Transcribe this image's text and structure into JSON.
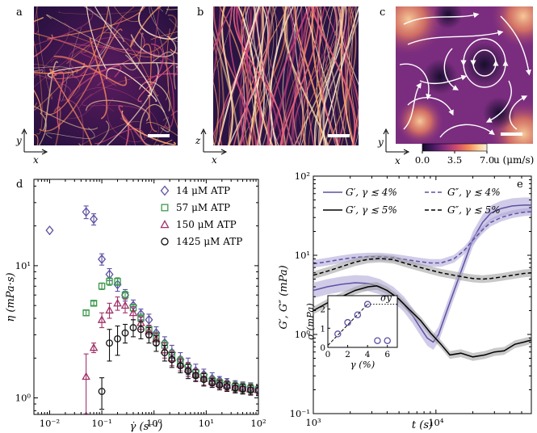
{
  "panel_labels": {
    "a": "a",
    "b": "b",
    "c": "c",
    "d": "d",
    "e": "e"
  },
  "micro": {
    "a_axes": {
      "vertical": "y",
      "horizontal": "x"
    },
    "b_axes": {
      "vertical": "z",
      "horizontal": "x"
    },
    "c_axes": {
      "vertical": "y",
      "horizontal": "x"
    },
    "colorbar": {
      "ticks": [
        "0.0",
        "3.5",
        "7.0"
      ],
      "label": "u (μm/s)",
      "colors": [
        "#120c2b",
        "#4b1a67",
        "#8f2f7e",
        "#d6506c",
        "#f58a5a",
        "#fcd29b",
        "#fcefd9"
      ]
    }
  },
  "chart_data": [
    {
      "type": "scatter",
      "panel": "d",
      "xlabel": "γ̇ (s⁻¹)",
      "ylabel": "η (mPa·s)",
      "xscale": "log",
      "yscale": "log",
      "xlim": [
        0.005,
        100
      ],
      "ylim": [
        0.75,
        45
      ],
      "xticks": [
        {
          "v": 0.01,
          "label": "10⁻²"
        },
        {
          "v": 0.1,
          "label": "10⁻¹"
        },
        {
          "v": 1,
          "label": "10⁰"
        },
        {
          "v": 10,
          "label": "10¹"
        },
        {
          "v": 100,
          "label": "10²"
        }
      ],
      "yticks": [
        {
          "v": 1,
          "label": "10⁰"
        },
        {
          "v": 10,
          "label": "10¹"
        }
      ],
      "legend_position": "top-right",
      "series": [
        {
          "name": "14 μM ATP",
          "marker": "diamond",
          "color": "#5c51a3",
          "points": [
            [
              0.01,
              18.5
            ],
            [
              0.05,
              25.5
            ],
            [
              0.07,
              22.5
            ],
            [
              0.1,
              11.2
            ],
            [
              0.14,
              8.6
            ],
            [
              0.2,
              7.2
            ],
            [
              0.28,
              6.0
            ],
            [
              0.4,
              5.0
            ],
            [
              0.56,
              4.3
            ],
            [
              0.8,
              3.9
            ],
            [
              1.1,
              3.1
            ],
            [
              1.6,
              2.6
            ],
            [
              2.2,
              2.2
            ],
            [
              3.2,
              1.95
            ],
            [
              4.5,
              1.75
            ],
            [
              6.3,
              1.6
            ],
            [
              9,
              1.5
            ],
            [
              13,
              1.4
            ],
            [
              18,
              1.35
            ],
            [
              25,
              1.3
            ],
            [
              36,
              1.25
            ],
            [
              50,
              1.22
            ],
            [
              71,
              1.2
            ],
            [
              100,
              1.17
            ]
          ],
          "err": [
            0.0,
            2.8,
            2.2,
            1.1,
            0.9,
            0.8,
            0.6,
            0.5,
            0.4,
            0.4,
            0.35,
            0.3,
            0.3,
            0.25,
            0.25,
            0.2,
            0.15,
            0.15,
            0.1,
            0.1,
            0.1,
            0.1,
            0.1,
            0.1
          ]
        },
        {
          "name": "57 μM ATP",
          "marker": "square",
          "color": "#3b9a4a",
          "points": [
            [
              0.05,
              4.4
            ],
            [
              0.07,
              5.2
            ],
            [
              0.1,
              7.0
            ],
            [
              0.14,
              7.6
            ],
            [
              0.2,
              7.6
            ],
            [
              0.28,
              6.0
            ],
            [
              0.4,
              4.8
            ],
            [
              0.56,
              4.0
            ],
            [
              0.8,
              3.3
            ],
            [
              1.1,
              2.9
            ],
            [
              1.6,
              2.5
            ],
            [
              2.2,
              2.1
            ],
            [
              3.2,
              1.9
            ],
            [
              4.5,
              1.7
            ],
            [
              6.3,
              1.55
            ],
            [
              9,
              1.45
            ],
            [
              13,
              1.35
            ],
            [
              18,
              1.3
            ],
            [
              25,
              1.25
            ],
            [
              36,
              1.22
            ],
            [
              50,
              1.2
            ],
            [
              71,
              1.18
            ],
            [
              100,
              1.16
            ]
          ],
          "err": [
            0.2,
            0.2,
            0.4,
            0.5,
            0.5,
            0.4,
            0.3,
            0.3,
            0.25,
            0.25,
            0.2,
            0.2,
            0.15,
            0.15,
            0.1,
            0.1,
            0.1,
            0.1,
            0.1,
            0.1,
            0.1,
            0.1,
            0.1
          ]
        },
        {
          "name": "150 μM ATP",
          "marker": "triangle",
          "color": "#a0326a",
          "points": [
            [
              0.05,
              1.45
            ],
            [
              0.07,
              2.4
            ],
            [
              0.1,
              3.9
            ],
            [
              0.14,
              4.6
            ],
            [
              0.2,
              5.2
            ],
            [
              0.28,
              5.0
            ],
            [
              0.4,
              4.4
            ],
            [
              0.56,
              3.7
            ],
            [
              0.8,
              3.2
            ],
            [
              1.1,
              2.8
            ],
            [
              1.6,
              2.3
            ],
            [
              2.2,
              2.0
            ],
            [
              3.2,
              1.8
            ],
            [
              4.5,
              1.65
            ],
            [
              6.3,
              1.5
            ],
            [
              9,
              1.4
            ],
            [
              13,
              1.33
            ],
            [
              18,
              1.28
            ],
            [
              25,
              1.24
            ],
            [
              36,
              1.2
            ],
            [
              50,
              1.18
            ],
            [
              71,
              1.16
            ],
            [
              100,
              1.15
            ]
          ],
          "err": [
            0.7,
            0.2,
            0.5,
            0.6,
            0.6,
            0.6,
            0.5,
            0.4,
            0.35,
            0.3,
            0.3,
            0.25,
            0.2,
            0.2,
            0.15,
            0.15,
            0.1,
            0.1,
            0.1,
            0.1,
            0.1,
            0.1,
            0.1
          ]
        },
        {
          "name": "1425 μM ATP",
          "marker": "circle",
          "color": "#111111",
          "points": [
            [
              0.1,
              1.12
            ],
            [
              0.14,
              2.6
            ],
            [
              0.2,
              2.8
            ],
            [
              0.28,
              3.1
            ],
            [
              0.4,
              3.4
            ],
            [
              0.56,
              3.3
            ],
            [
              0.8,
              3.0
            ],
            [
              1.1,
              2.6
            ],
            [
              1.6,
              2.2
            ],
            [
              2.2,
              1.95
            ],
            [
              3.2,
              1.75
            ],
            [
              4.5,
              1.6
            ],
            [
              6.3,
              1.48
            ],
            [
              9,
              1.38
            ],
            [
              13,
              1.3
            ],
            [
              18,
              1.25
            ],
            [
              25,
              1.22
            ],
            [
              36,
              1.19
            ],
            [
              50,
              1.17
            ],
            [
              71,
              1.15
            ],
            [
              100,
              1.14
            ]
          ],
          "err": [
            0.3,
            0.7,
            0.7,
            0.5,
            0.5,
            0.5,
            0.4,
            0.35,
            0.3,
            0.25,
            0.2,
            0.2,
            0.15,
            0.15,
            0.1,
            0.1,
            0.1,
            0.1,
            0.1,
            0.1,
            0.1
          ]
        }
      ]
    },
    {
      "type": "line",
      "panel": "e",
      "xlabel": "t (s)",
      "ylabel": "G′, G″ (mPa)",
      "xscale": "log",
      "yscale": "log",
      "xlim": [
        1000,
        60000
      ],
      "ylim": [
        0.1,
        100
      ],
      "xticks": [
        {
          "v": 1000,
          "label": "10³"
        },
        {
          "v": 10000,
          "label": "10⁴"
        }
      ],
      "yticks": [
        {
          "v": 0.1,
          "label": "10⁻¹"
        },
        {
          "v": 1,
          "label": "10⁰"
        },
        {
          "v": 10,
          "label": "10¹"
        },
        {
          "v": 100,
          "label": "10²"
        }
      ],
      "legend_position": "top",
      "series": [
        {
          "name": "G′, γ ≲ 4%",
          "style": "solid",
          "color": "#5c51a3",
          "band": true,
          "points": [
            [
              1000,
              3.6
            ],
            [
              1300,
              4.0
            ],
            [
              1700,
              4.3
            ],
            [
              2200,
              4.5
            ],
            [
              2800,
              4.4
            ],
            [
              3500,
              4.0
            ],
            [
              4500,
              3.2
            ],
            [
              5500,
              2.4
            ],
            [
              6500,
              1.7
            ],
            [
              7500,
              1.2
            ],
            [
              8500,
              0.9
            ],
            [
              9500,
              0.8
            ],
            [
              10500,
              1.0
            ],
            [
              12000,
              1.8
            ],
            [
              14000,
              3.5
            ],
            [
              17000,
              8.0
            ],
            [
              20000,
              16.0
            ],
            [
              24000,
              26.0
            ],
            [
              28000,
              34.0
            ],
            [
              34000,
              39.0
            ],
            [
              42000,
              42.0
            ],
            [
              52000,
              43.0
            ],
            [
              60000,
              43.0
            ]
          ]
        },
        {
          "name": "G″, γ ≲ 4%",
          "style": "dashed",
          "color": "#5c51a3",
          "band": true,
          "points": [
            [
              1000,
              7.8
            ],
            [
              1300,
              8.3
            ],
            [
              1700,
              8.9
            ],
            [
              2200,
              9.4
            ],
            [
              2800,
              9.6
            ],
            [
              3500,
              9.6
            ],
            [
              4500,
              9.3
            ],
            [
              5500,
              8.9
            ],
            [
              7000,
              8.4
            ],
            [
              9000,
              8.0
            ],
            [
              11000,
              8.0
            ],
            [
              14000,
              9.0
            ],
            [
              17000,
              11.5
            ],
            [
              20000,
              15.5
            ],
            [
              24000,
              21.0
            ],
            [
              28000,
              26.0
            ],
            [
              34000,
              30.0
            ],
            [
              42000,
              33.0
            ],
            [
              52000,
              35.0
            ],
            [
              60000,
              35.5
            ]
          ]
        },
        {
          "name": "G′, γ ≲ 5%",
          "style": "solid",
          "color": "#000000",
          "band": true,
          "points": [
            [
              1000,
              2.0
            ],
            [
              1300,
              2.5
            ],
            [
              1700,
              3.0
            ],
            [
              2200,
              3.6
            ],
            [
              2800,
              4.0
            ],
            [
              3300,
              4.1
            ],
            [
              4000,
              3.6
            ],
            [
              5000,
              2.8
            ],
            [
              6000,
              2.1
            ],
            [
              7500,
              1.5
            ],
            [
              9000,
              1.05
            ],
            [
              11000,
              0.75
            ],
            [
              13000,
              0.55
            ],
            [
              16000,
              0.58
            ],
            [
              20000,
              0.52
            ],
            [
              25000,
              0.55
            ],
            [
              30000,
              0.6
            ],
            [
              36000,
              0.62
            ],
            [
              44000,
              0.75
            ],
            [
              52000,
              0.8
            ],
            [
              60000,
              0.85
            ]
          ]
        },
        {
          "name": "G″, γ ≲ 5%",
          "style": "dashed",
          "color": "#000000",
          "band": true,
          "points": [
            [
              1000,
              5.6
            ],
            [
              1300,
              6.3
            ],
            [
              1700,
              7.2
            ],
            [
              2200,
              8.2
            ],
            [
              2800,
              8.9
            ],
            [
              3500,
              9.1
            ],
            [
              4500,
              8.8
            ],
            [
              5500,
              8.0
            ],
            [
              7000,
              7.2
            ],
            [
              9000,
              6.5
            ],
            [
              11000,
              6.0
            ],
            [
              14000,
              5.6
            ],
            [
              17000,
              5.3
            ],
            [
              20000,
              5.1
            ],
            [
              24000,
              5.0
            ],
            [
              28000,
              5.1
            ],
            [
              34000,
              5.3
            ],
            [
              42000,
              5.6
            ],
            [
              52000,
              5.9
            ],
            [
              60000,
              6.0
            ]
          ]
        }
      ],
      "inset": {
        "type": "scatter",
        "xlabel": "γ (%)",
        "ylabel": "σ (mPa)",
        "xlim": [
          0,
          7
        ],
        "ylim": [
          0,
          2.7
        ],
        "xticks": [
          0,
          2,
          4,
          6
        ],
        "yticks": [
          0,
          1,
          2
        ],
        "annotation": "σy",
        "color": "#5c51a3",
        "points": [
          [
            1,
            0.7
          ],
          [
            2,
            1.3
          ],
          [
            3,
            1.7
          ],
          [
            4,
            2.25
          ],
          [
            5,
            0.35
          ],
          [
            6,
            0.35
          ]
        ],
        "fit": [
          [
            0,
            0.1
          ],
          [
            4,
            2.25
          ]
        ],
        "threshold": 2.25
      }
    }
  ]
}
